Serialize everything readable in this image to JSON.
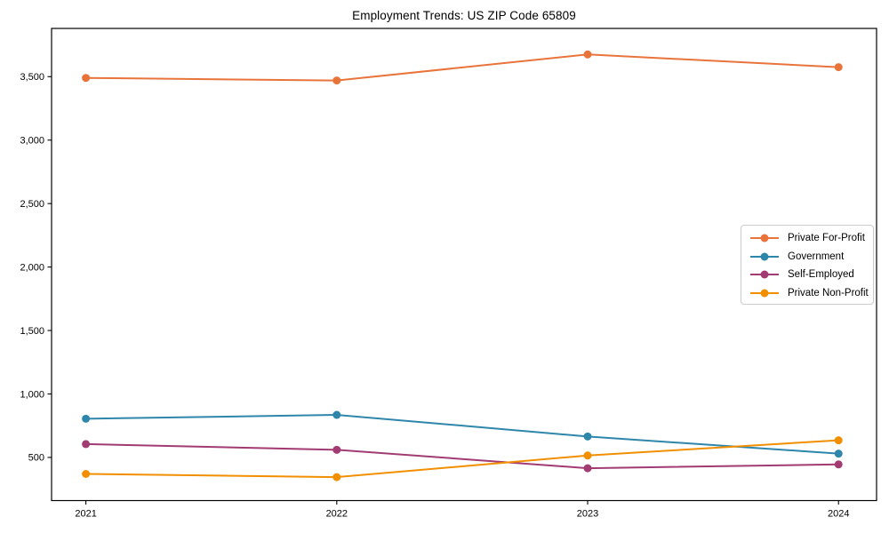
{
  "chart_data": {
    "type": "line",
    "title": "Employment Trends: US ZIP Code 65809",
    "categories": [
      "2021",
      "2022",
      "2023",
      "2024"
    ],
    "series": [
      {
        "name": "Private For-Profit",
        "color": "#E8743B",
        "values": [
          3490,
          3470,
          3675,
          3575
        ]
      },
      {
        "name": "Government",
        "color": "#2E86AB",
        "values": [
          805,
          835,
          665,
          530
        ]
      },
      {
        "name": "Self-Employed",
        "color": "#A23B72",
        "values": [
          605,
          560,
          415,
          445
        ]
      },
      {
        "name": "Private Non-Profit",
        "color": "#F18F01",
        "values": [
          370,
          345,
          515,
          635
        ]
      }
    ],
    "xlabel": "",
    "ylabel": "",
    "yticks": [
      500,
      1000,
      1500,
      2000,
      2500,
      3000,
      3500
    ],
    "ytick_labels": [
      "500",
      "1,000",
      "1,500",
      "2,000",
      "2,500",
      "3,000",
      "3,500"
    ],
    "ylim": [
      160,
      3880
    ],
    "grid": false,
    "legend_position": "center-right",
    "marker": "circle",
    "axis_color": "#000000",
    "background": "#ffffff"
  }
}
